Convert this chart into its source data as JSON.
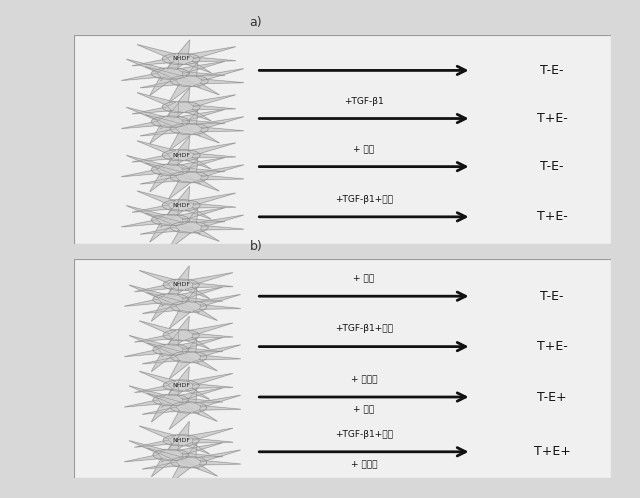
{
  "fig_width": 6.4,
  "fig_height": 4.98,
  "bg_color": "#d8d8d8",
  "panel_bg": "#f0f0f0",
  "border_color": "#999999",
  "label_a": "a)",
  "label_b": "b)",
  "panel_a": {
    "rows": [
      {
        "above": "",
        "below": "",
        "result": "T-E-"
      },
      {
        "above": "+TGF-β1",
        "below": "",
        "result": "T+E-"
      },
      {
        "above": "+ 薬剤",
        "below": "",
        "result": "T-E-"
      },
      {
        "above": "+TGF-β1+薬剤",
        "below": "",
        "result": "T+E-"
      }
    ],
    "nhdf_rows": [
      0,
      2,
      3
    ],
    "nhdf_label": "NHDF"
  },
  "panel_b": {
    "rows": [
      {
        "above": "+ 薬剤",
        "below": "",
        "result": "T-E-"
      },
      {
        "above": "+TGF-β1+薬剤",
        "below": "",
        "result": "T+E-"
      },
      {
        "above": "+ 滲出液",
        "below": "+ 薬剤",
        "result": "T-E+"
      },
      {
        "above": "+TGF-β1+薬剤",
        "below": "+ 滲出液",
        "result": "T+E+"
      }
    ],
    "nhdf_rows": [
      0,
      2,
      3
    ],
    "nhdf_label": "NHDF"
  },
  "arrow_color": "#111111",
  "text_color": "#111111",
  "cell_body_color": "#cccccc",
  "cell_edge_color": "#888888"
}
